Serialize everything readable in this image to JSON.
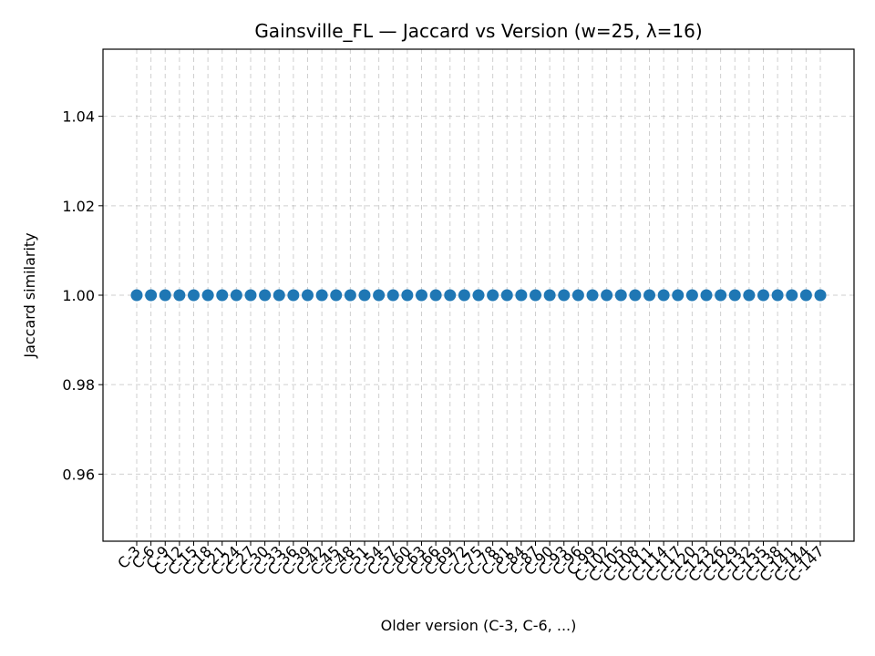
{
  "chart_data": {
    "type": "scatter",
    "title": "Gainsville_FL — Jaccard vs Version (w=25, λ=16)",
    "xlabel": "Older version (C-3, C-6, ...)",
    "ylabel": "Jaccard similarity",
    "categories": [
      "C-3",
      "C-6",
      "C-9",
      "C-12",
      "C-15",
      "C-18",
      "C-21",
      "C-24",
      "C-27",
      "C-30",
      "C-33",
      "C-36",
      "C-39",
      "C-42",
      "C-45",
      "C-48",
      "C-51",
      "C-54",
      "C-57",
      "C-60",
      "C-63",
      "C-66",
      "C-69",
      "C-72",
      "C-75",
      "C-78",
      "C-81",
      "C-84",
      "C-87",
      "C-90",
      "C-93",
      "C-96",
      "C-99",
      "C-102",
      "C-105",
      "C-108",
      "C-111",
      "C-114",
      "C-117",
      "C-120",
      "C-123",
      "C-126",
      "C-129",
      "C-132",
      "C-135",
      "C-138",
      "C-141",
      "C-144",
      "C-147"
    ],
    "values": [
      1,
      1,
      1,
      1,
      1,
      1,
      1,
      1,
      1,
      1,
      1,
      1,
      1,
      1,
      1,
      1,
      1,
      1,
      1,
      1,
      1,
      1,
      1,
      1,
      1,
      1,
      1,
      1,
      1,
      1,
      1,
      1,
      1,
      1,
      1,
      1,
      1,
      1,
      1,
      1,
      1,
      1,
      1,
      1,
      1,
      1,
      1,
      1,
      1
    ],
    "ylim": [
      0.945,
      1.055
    ],
    "yticks": [
      "0.96",
      "0.98",
      "1.00",
      "1.02",
      "1.04"
    ],
    "grid": true,
    "color": "#1f77b4",
    "grid_color": "#b0b0b0"
  }
}
